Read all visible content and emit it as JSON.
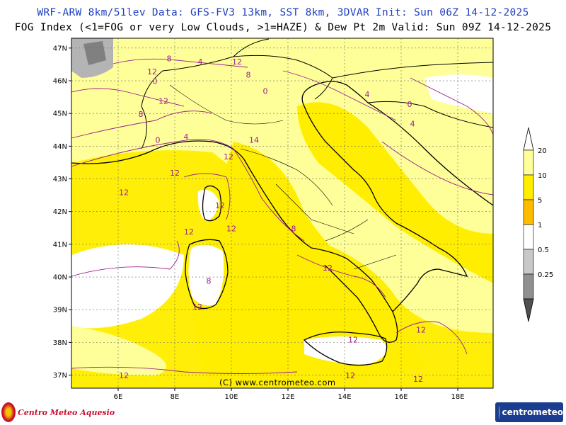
{
  "header": {
    "line1": "WRF-ARW 8km/51lev  Data: GFS-FV3 13km, SST 8km, 3DVAR  Init: Sun 06Z 14-12-2025",
    "line2": "FOG Index (<1=FOG or very Low Clouds, >1=HAZE) & Dew Pt 2m  Valid: Sun 09Z 14-12-2025"
  },
  "map": {
    "lat_labels": [
      "47N",
      "46N",
      "45N",
      "44N",
      "43N",
      "42N",
      "41N",
      "40N",
      "39N",
      "38N",
      "37N"
    ],
    "lon_labels": [
      "6E",
      "8E",
      "10E",
      "12E",
      "14E",
      "16E",
      "18E"
    ],
    "legend": {
      "labels": [
        "20",
        "10",
        "5",
        "1",
        "0.5",
        "0.25"
      ],
      "colors": [
        "#ffff99",
        "#ffee00",
        "#ffbb00",
        "#ffffff",
        "#c8c8c8",
        "#909090",
        "#505050"
      ]
    },
    "contour_labels": [
      {
        "text": "0",
        "lon": 7.3,
        "lat": 45.9
      },
      {
        "text": "4",
        "lon": 8.9,
        "lat": 46.5
      },
      {
        "text": "8",
        "lon": 7.8,
        "lat": 46.6
      },
      {
        "text": "12",
        "lon": 7.2,
        "lat": 46.2
      },
      {
        "text": "8",
        "lon": 10.6,
        "lat": 46.1
      },
      {
        "text": "12",
        "lon": 10.2,
        "lat": 46.5
      },
      {
        "text": "0",
        "lon": 11.2,
        "lat": 45.6
      },
      {
        "text": "4",
        "lon": 14.8,
        "lat": 45.5
      },
      {
        "text": "0",
        "lon": 16.3,
        "lat": 45.2
      },
      {
        "text": "12",
        "lon": 7.6,
        "lat": 45.3
      },
      {
        "text": "8",
        "lon": 6.8,
        "lat": 44.9
      },
      {
        "text": "4",
        "lon": 8.4,
        "lat": 44.2
      },
      {
        "text": "0",
        "lon": 7.4,
        "lat": 44.1
      },
      {
        "text": "14",
        "lon": 10.8,
        "lat": 44.1
      },
      {
        "text": "12",
        "lon": 9.9,
        "lat": 43.6
      },
      {
        "text": "4",
        "lon": 16.4,
        "lat": 44.6
      },
      {
        "text": "12",
        "lon": 8.0,
        "lat": 43.1
      },
      {
        "text": "12",
        "lon": 6.2,
        "lat": 42.5
      },
      {
        "text": "12",
        "lon": 9.6,
        "lat": 42.1
      },
      {
        "text": "12",
        "lon": 8.5,
        "lat": 41.3
      },
      {
        "text": "12",
        "lon": 10.0,
        "lat": 41.4
      },
      {
        "text": "8",
        "lon": 12.2,
        "lat": 41.4
      },
      {
        "text": "12",
        "lon": 13.4,
        "lat": 40.2
      },
      {
        "text": "8",
        "lon": 9.2,
        "lat": 39.8
      },
      {
        "text": "12",
        "lon": 8.8,
        "lat": 39.0
      },
      {
        "text": "12",
        "lon": 14.3,
        "lat": 38.0
      },
      {
        "text": "12",
        "lon": 16.7,
        "lat": 38.3
      },
      {
        "text": "12",
        "lon": 6.2,
        "lat": 36.9
      },
      {
        "text": "12",
        "lon": 14.2,
        "lat": 36.9
      },
      {
        "text": "12",
        "lon": 16.6,
        "lat": 36.8
      }
    ]
  },
  "credit": "(C) www.centrometeo.com",
  "logos": {
    "left": "Centro Meteo Aquesio",
    "right_text": "centrometeo"
  }
}
